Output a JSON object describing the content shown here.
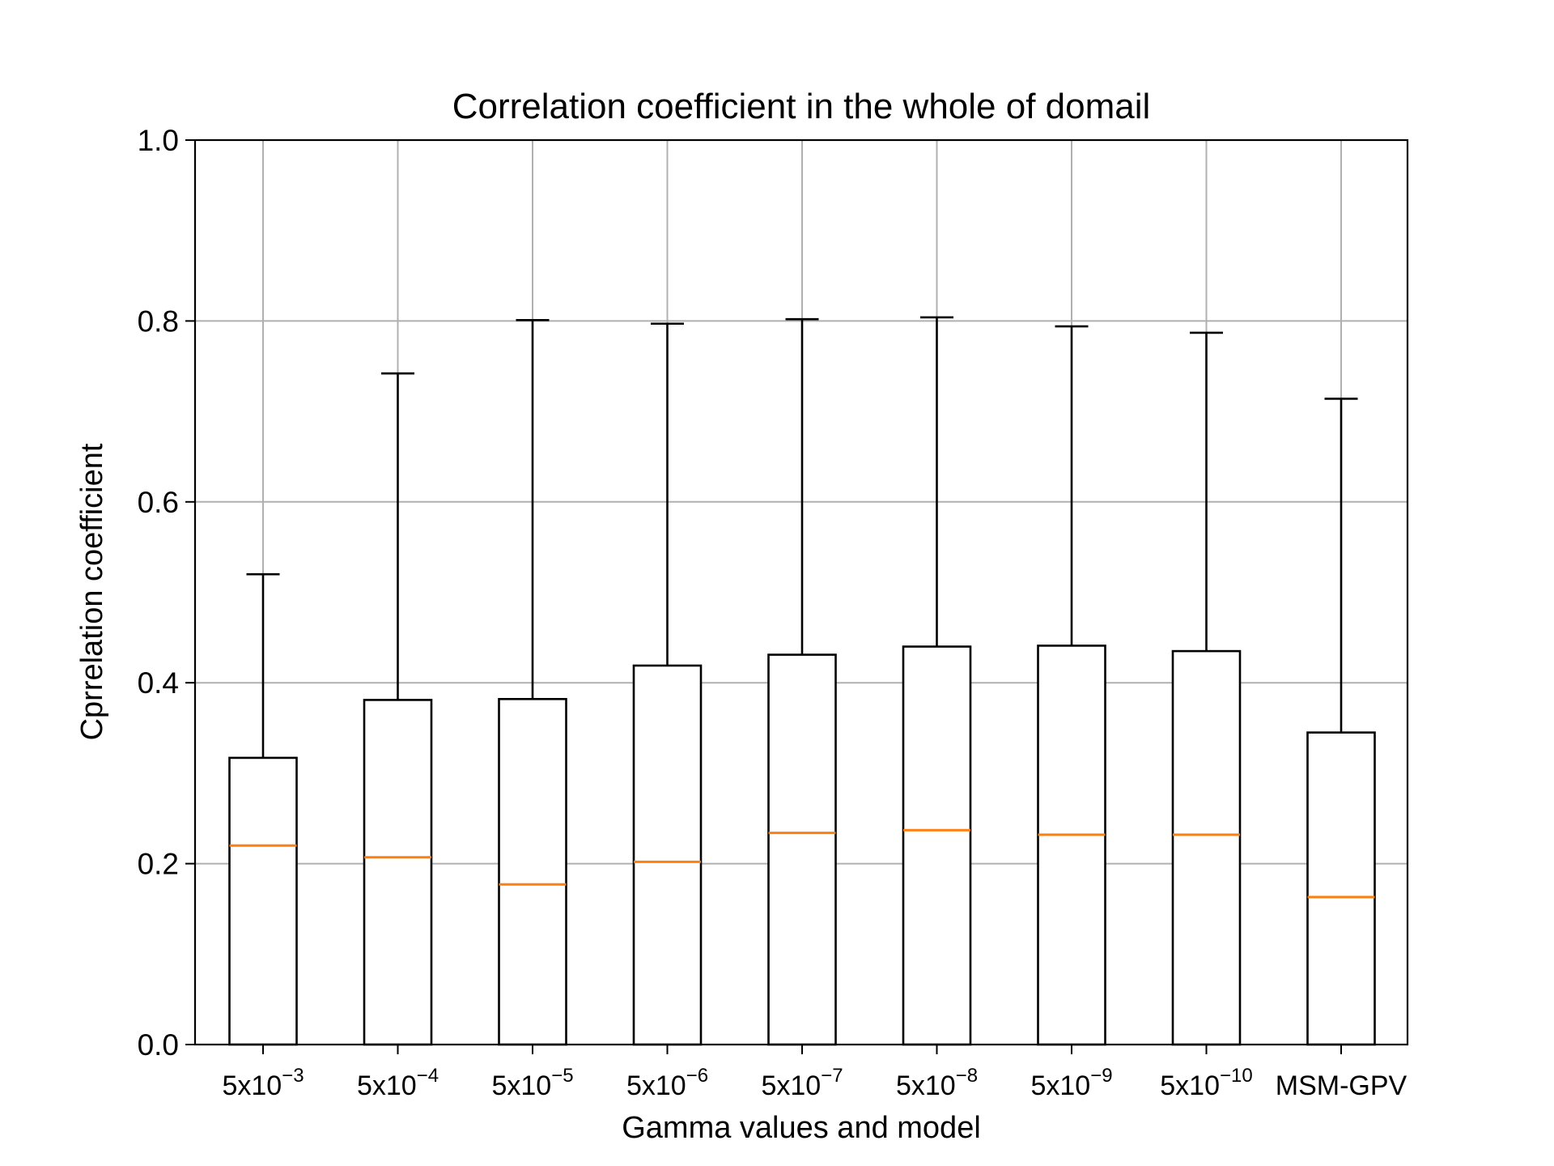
{
  "chart_data": {
    "type": "box",
    "title": "Correlation coefficient in the whole of domail",
    "xlabel": "Gamma values and model",
    "ylabel": "Cprrelation coefficient",
    "ylim": [
      0.0,
      1.0
    ],
    "yticks": [
      "0.0",
      "0.2",
      "0.4",
      "0.6",
      "0.8",
      "1.0"
    ],
    "grid": true,
    "categories": [
      {
        "base": "5x10",
        "sup": "−3"
      },
      {
        "base": "5x10",
        "sup": "−4"
      },
      {
        "base": "5x10",
        "sup": "−5"
      },
      {
        "base": "5x10",
        "sup": "−6"
      },
      {
        "base": "5x10",
        "sup": "−7"
      },
      {
        "base": "5x10",
        "sup": "−8"
      },
      {
        "base": "5x10",
        "sup": "−9"
      },
      {
        "base": "5x10",
        "sup": "−10"
      },
      {
        "base": "MSM-GPV",
        "sup": ""
      }
    ],
    "boxes": [
      {
        "whisker_low": 0.0,
        "q1": 0.0,
        "median": 0.22,
        "q3": 0.317,
        "whisker_high": 0.52
      },
      {
        "whisker_low": 0.0,
        "q1": 0.0,
        "median": 0.207,
        "q3": 0.381,
        "whisker_high": 0.742
      },
      {
        "whisker_low": 0.0,
        "q1": 0.0,
        "median": 0.177,
        "q3": 0.382,
        "whisker_high": 0.801
      },
      {
        "whisker_low": 0.0,
        "q1": 0.0,
        "median": 0.202,
        "q3": 0.419,
        "whisker_high": 0.797
      },
      {
        "whisker_low": 0.0,
        "q1": 0.0,
        "median": 0.234,
        "q3": 0.431,
        "whisker_high": 0.802
      },
      {
        "whisker_low": 0.0,
        "q1": 0.0,
        "median": 0.237,
        "q3": 0.44,
        "whisker_high": 0.804
      },
      {
        "whisker_low": 0.0,
        "q1": 0.0,
        "median": 0.232,
        "q3": 0.441,
        "whisker_high": 0.794
      },
      {
        "whisker_low": 0.0,
        "q1": 0.0,
        "median": 0.232,
        "q3": 0.435,
        "whisker_high": 0.787
      },
      {
        "whisker_low": 0.0,
        "q1": 0.0,
        "median": 0.163,
        "q3": 0.345,
        "whisker_high": 0.714
      }
    ],
    "colors": {
      "box": "#000000",
      "median": "#ff7f0e",
      "grid": "#b0b0b0",
      "axes": "#000000"
    }
  }
}
